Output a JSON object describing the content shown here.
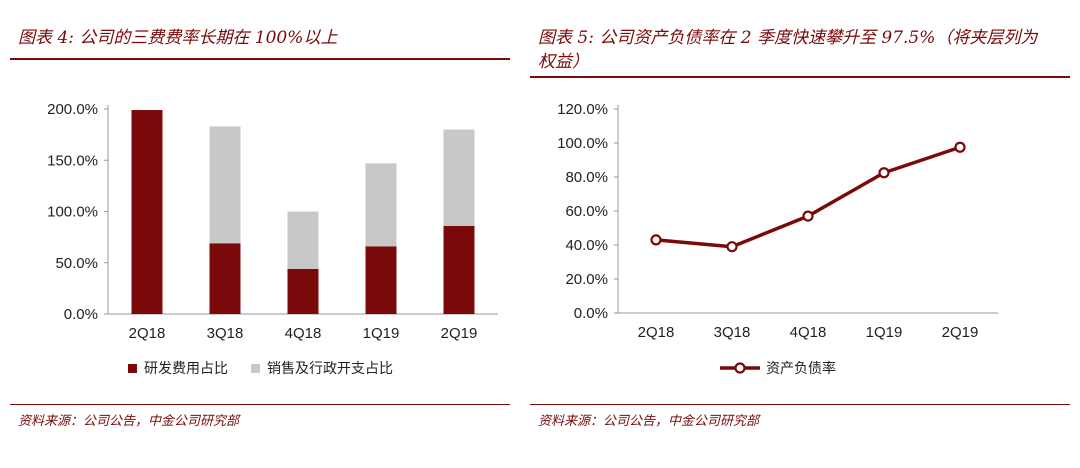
{
  "left": {
    "title": "图表 4:  公司的三费费率长期在 100%以上",
    "source": "资料来源：公司公告，中金公司研究部"
  },
  "right": {
    "title": "图表 5:  公司资产负债率在 2 季度快速攀升至 97.5%（将夹层列为权益）",
    "source": "资料来源：公司公告，中金公司研究部"
  },
  "colors": {
    "accent": "#7a0a0a",
    "gray": "#c8c8c8"
  },
  "chart_data": [
    {
      "type": "bar",
      "stacked": true,
      "categories": [
        "2Q18",
        "3Q18",
        "4Q18",
        "1Q19",
        "2Q19"
      ],
      "series": [
        {
          "name": "研发费用占比",
          "values": [
            199,
            69,
            44,
            66,
            86
          ],
          "color": "#7a0a0a"
        },
        {
          "name": "销售及行政开支占比",
          "values": [
            0,
            114,
            56,
            81,
            94
          ],
          "color": "#c8c8c8"
        }
      ],
      "yticks": [
        "0.0%",
        "50.0%",
        "100.0%",
        "150.0%",
        "200.0%"
      ],
      "ylim": [
        0,
        200
      ],
      "legend": "bottom"
    },
    {
      "type": "line",
      "categories": [
        "2Q18",
        "3Q18",
        "4Q18",
        "1Q19",
        "2Q19"
      ],
      "series": [
        {
          "name": "资产负债率",
          "values": [
            43,
            39,
            57,
            82.5,
            97.5
          ],
          "color": "#7a0a0a"
        }
      ],
      "yticks": [
        "0.0%",
        "20.0%",
        "40.0%",
        "60.0%",
        "80.0%",
        "100.0%",
        "120.0%"
      ],
      "ylim": [
        0,
        120
      ],
      "legend": "bottom"
    }
  ]
}
